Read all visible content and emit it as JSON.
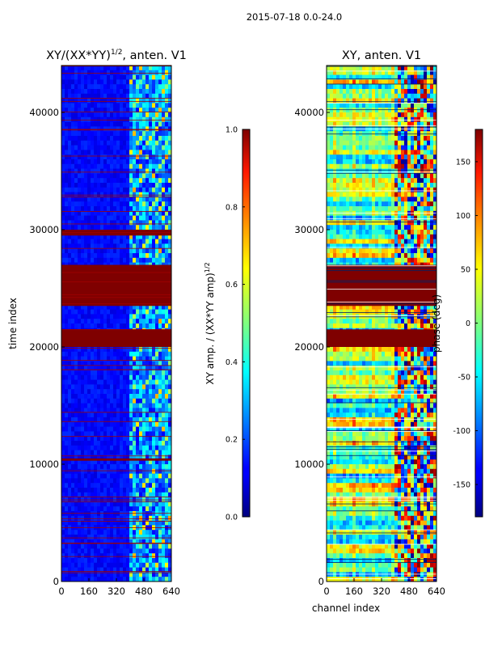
{
  "suptitle": "2015-07-18 0.0-24.0",
  "chart_data": [
    {
      "type": "heatmap",
      "title": "XY/(XX*YY)^(1/2), anten. V1",
      "title_main": "XY/(XX*YY)",
      "title_exp": "1/2",
      "title_tail": ", anten. V1",
      "xlabel": "",
      "ylabel": "time index",
      "x_range": [
        0,
        640
      ],
      "y_range": [
        0,
        44000
      ],
      "xticks": [
        0,
        160,
        320,
        480,
        640
      ],
      "yticks": [
        0,
        10000,
        20000,
        30000,
        40000
      ],
      "colormap": "jet",
      "colorbar": {
        "label_main": "XY amp. / (XX*YY amp)",
        "label_exp": "1/2",
        "range": [
          0.0,
          1.0
        ],
        "ticks": [
          "0.0",
          "0.2",
          "0.4",
          "0.6",
          "0.8",
          "1.0"
        ],
        "tick_values": [
          0.0,
          0.2,
          0.4,
          0.6,
          0.8,
          1.0
        ]
      },
      "saturated_time_bands": [
        [
          20000,
          21500
        ],
        [
          23500,
          27000
        ],
        [
          29500,
          30000
        ],
        [
          10300,
          10500
        ]
      ],
      "active_channel_range": [
        400,
        640
      ],
      "background_level": 0.1
    },
    {
      "type": "heatmap",
      "title": "XY, anten. V1",
      "xlabel": "channel index",
      "ylabel": "",
      "x_range": [
        0,
        640
      ],
      "y_range": [
        0,
        44000
      ],
      "xticks": [
        0,
        160,
        320,
        480,
        640
      ],
      "yticks": [
        0,
        10000,
        20000,
        30000,
        40000
      ],
      "colormap": "jet",
      "colorbar": {
        "label_main": "phase (deg)",
        "range": [
          -180,
          180
        ],
        "ticks": [
          "-150",
          "-100",
          "-50",
          "0",
          "50",
          "100",
          "150"
        ],
        "tick_values": [
          -150,
          -100,
          -50,
          0,
          50,
          100,
          150
        ]
      },
      "saturated_time_bands": [
        [
          20000,
          21500
        ],
        [
          23500,
          27000
        ]
      ],
      "active_channel_range": [
        400,
        640
      ]
    }
  ]
}
